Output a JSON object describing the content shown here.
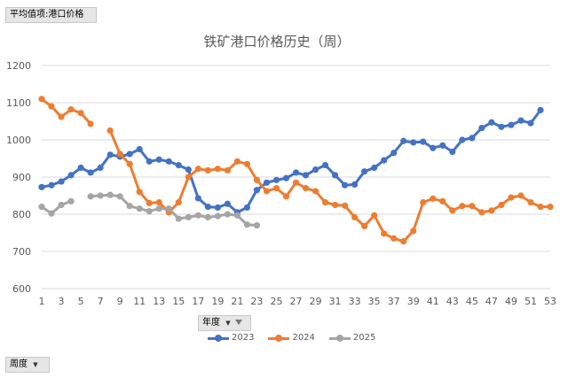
{
  "pivot": {
    "value_field_label": "平均值项:港口价格",
    "week_field_label": "周度",
    "year_field_label": "年度",
    "dropdown_glyph": "▼"
  },
  "colors": {
    "2023": "#4472C4",
    "2024": "#ED7D31",
    "2025": "#A5A5A5"
  },
  "chart_data": {
    "type": "line",
    "title": "铁矿港口价格历史（周）",
    "xlabel": "",
    "ylabel": "",
    "ylim": [
      600,
      1200
    ],
    "xlim": [
      1,
      53
    ],
    "yticks": [
      600,
      700,
      800,
      900,
      1000,
      1100,
      1200
    ],
    "xticks": [
      1,
      3,
      5,
      7,
      9,
      11,
      13,
      15,
      17,
      19,
      21,
      23,
      25,
      27,
      29,
      31,
      33,
      35,
      37,
      39,
      41,
      43,
      45,
      47,
      49,
      51,
      53
    ],
    "grid": "horizontal",
    "legend": "bottom",
    "series": [
      {
        "name": "2023",
        "x": [
          1,
          2,
          3,
          4,
          5,
          6,
          7,
          8,
          9,
          10,
          11,
          12,
          13,
          14,
          15,
          16,
          17,
          18,
          19,
          20,
          21,
          22,
          23,
          24,
          25,
          26,
          27,
          28,
          29,
          30,
          31,
          32,
          33,
          34,
          35,
          36,
          37,
          38,
          39,
          40,
          41,
          42,
          43,
          44,
          45,
          46,
          47,
          48,
          49,
          50,
          51,
          52
        ],
        "values": [
          873,
          878,
          888,
          905,
          925,
          912,
          925,
          960,
          955,
          962,
          975,
          942,
          947,
          942,
          932,
          920,
          843,
          820,
          818,
          828,
          805,
          818,
          865,
          885,
          892,
          897,
          912,
          905,
          920,
          932,
          905,
          878,
          880,
          915,
          925,
          945,
          965,
          997,
          993,
          995,
          978,
          985,
          968,
          1000,
          1005,
          1032,
          1047,
          1035,
          1040,
          1052,
          1045,
          1080
        ]
      },
      {
        "name": "2024",
        "x": [
          1,
          2,
          3,
          4,
          5,
          6,
          null,
          8,
          9,
          10,
          11,
          12,
          13,
          14,
          15,
          16,
          17,
          18,
          19,
          20,
          21,
          22,
          23,
          24,
          25,
          26,
          27,
          28,
          29,
          30,
          31,
          32,
          33,
          34,
          35,
          36,
          37,
          38,
          39,
          40,
          41,
          42,
          43,
          44,
          45,
          46,
          47,
          48,
          49,
          50,
          51,
          52,
          53
        ],
        "values": [
          1110,
          1090,
          1062,
          1082,
          1072,
          1043,
          null,
          1025,
          962,
          935,
          860,
          830,
          832,
          805,
          832,
          900,
          922,
          918,
          922,
          918,
          942,
          935,
          892,
          862,
          870,
          848,
          885,
          870,
          862,
          832,
          825,
          823,
          792,
          768,
          797,
          748,
          735,
          727,
          755,
          832,
          842,
          835,
          810,
          822,
          822,
          805,
          810,
          825,
          845,
          850,
          832,
          820,
          820
        ]
      },
      {
        "name": "2025",
        "x": [
          1,
          2,
          3,
          4,
          null,
          6,
          7,
          8,
          9,
          10,
          11,
          12,
          13,
          14,
          15,
          16,
          17,
          18,
          19,
          20,
          21,
          22,
          23
        ],
        "values": [
          820,
          802,
          825,
          835,
          null,
          848,
          850,
          852,
          848,
          822,
          815,
          808,
          815,
          815,
          788,
          792,
          797,
          792,
          795,
          800,
          797,
          772,
          770
        ]
      }
    ]
  }
}
